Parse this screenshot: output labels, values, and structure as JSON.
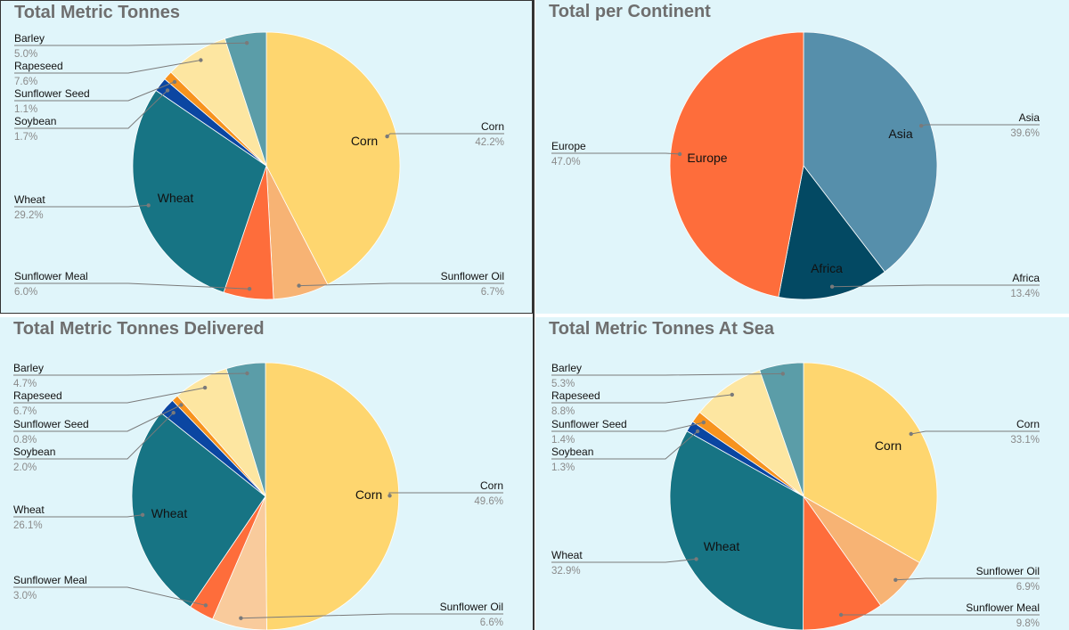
{
  "chart_data": [
    {
      "type": "pie",
      "title": "Total Metric Tonnes",
      "labels": [
        "Corn",
        "Sunflower Oil",
        "Sunflower Meal",
        "Wheat",
        "Soybean",
        "Sunflower Seed",
        "Rapeseed",
        "Barley"
      ],
      "values": [
        42.2,
        6.7,
        6.0,
        29.2,
        1.7,
        1.1,
        7.6,
        5.0
      ],
      "value_labels": [
        "42.2%",
        "6.7%",
        "6.0%",
        "29.2%",
        "1.7%",
        "1.1%",
        "7.6%",
        "5.0%"
      ],
      "colors": [
        "#fed66f",
        "#f7b374",
        "#fe6d3b",
        "#177484",
        "#0b46a2",
        "#f7931e",
        "#fde6a1",
        "#5b9da8"
      ],
      "inner_labels": [
        "Corn",
        "Wheat"
      ]
    },
    {
      "type": "pie",
      "title": "Total per Continent",
      "labels": [
        "Asia",
        "Africa",
        "Europe"
      ],
      "values": [
        39.6,
        13.4,
        47.0
      ],
      "value_labels": [
        "39.6%",
        "13.4%",
        "47.0%"
      ],
      "colors": [
        "#568fab",
        "#034963",
        "#fe6d3b"
      ],
      "inner_labels": [
        "Asia",
        "Africa",
        "Europe"
      ]
    },
    {
      "type": "pie",
      "title": "Total Metric Tonnes Delivered",
      "labels": [
        "Corn",
        "Sunflower Oil",
        "Sunflower Meal",
        "Wheat",
        "Soybean",
        "Sunflower Seed",
        "Rapeseed",
        "Barley"
      ],
      "values": [
        49.6,
        6.6,
        3.0,
        26.1,
        2.0,
        0.8,
        6.7,
        4.7
      ],
      "value_labels": [
        "49.6%",
        "6.6%",
        "3.0%",
        "26.1%",
        "2.0%",
        "0.8%",
        "6.7%",
        "4.7%"
      ],
      "colors": [
        "#fed66f",
        "#f9cb9c",
        "#fe6d3b",
        "#177484",
        "#0b46a2",
        "#f7931e",
        "#fde6a1",
        "#5b9da8"
      ],
      "inner_labels": [
        "Corn",
        "Wheat"
      ]
    },
    {
      "type": "pie",
      "title": "Total Metric Tonnes At Sea",
      "labels": [
        "Corn",
        "Sunflower Oil",
        "Sunflower Meal",
        "Wheat",
        "Soybean",
        "Sunflower Seed",
        "Rapeseed",
        "Barley"
      ],
      "values": [
        33.1,
        6.9,
        9.8,
        32.9,
        1.3,
        1.4,
        8.8,
        5.3
      ],
      "value_labels": [
        "33.1%",
        "6.9%",
        "9.8%",
        "32.9%",
        "1.3%",
        "1.4%",
        "8.8%",
        "5.3%"
      ],
      "colors": [
        "#fed66f",
        "#f7b374",
        "#fe6d3b",
        "#177484",
        "#0b46a2",
        "#f7931e",
        "#fde6a1",
        "#5b9da8"
      ],
      "inner_labels": [
        "Corn",
        "Wheat"
      ]
    }
  ]
}
